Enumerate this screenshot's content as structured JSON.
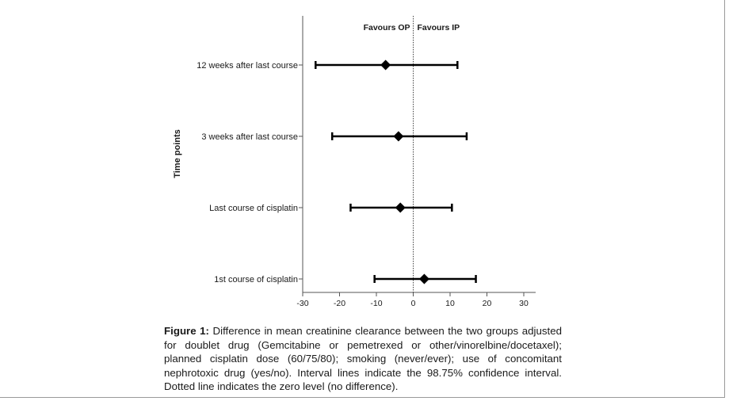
{
  "chart_data": {
    "type": "forest",
    "ylabel": "Time points",
    "annotations": [
      "Favours OP",
      "Favours IP"
    ],
    "reference_line": 0,
    "xlim": [
      -30,
      33
    ],
    "xticks": [
      -30,
      -20,
      -10,
      0,
      10,
      20,
      30
    ],
    "rows": [
      {
        "label": "12 weeks after last course",
        "estimate": -7.5,
        "lower": -26.5,
        "upper": 12.0
      },
      {
        "label": "3 weeks after last course",
        "estimate": -4.0,
        "lower": -22.0,
        "upper": 14.5
      },
      {
        "label": "Last course of cisplatin",
        "estimate": -3.5,
        "lower": -17.0,
        "upper": 10.5
      },
      {
        "label": "1st course of cisplatin",
        "estimate": 3.0,
        "lower": -10.5,
        "upper": 17.0
      }
    ]
  },
  "caption": {
    "label": "Figure 1:",
    "text": "Difference in mean creatinine clearance between the two groups adjusted for doublet drug (Gemcitabine or pemetrexed or other/vinorelbine/docetaxel); planned cisplatin dose (60/75/80); smoking (never/ever); use of concomitant nephrotoxic drug (yes/no). Interval lines indicate the 98.75% confidence interval. Dotted line indicates the zero level (no difference)."
  },
  "colors": {
    "marks": "#000000",
    "axis": "#555555",
    "text": "#1a1a1a"
  }
}
